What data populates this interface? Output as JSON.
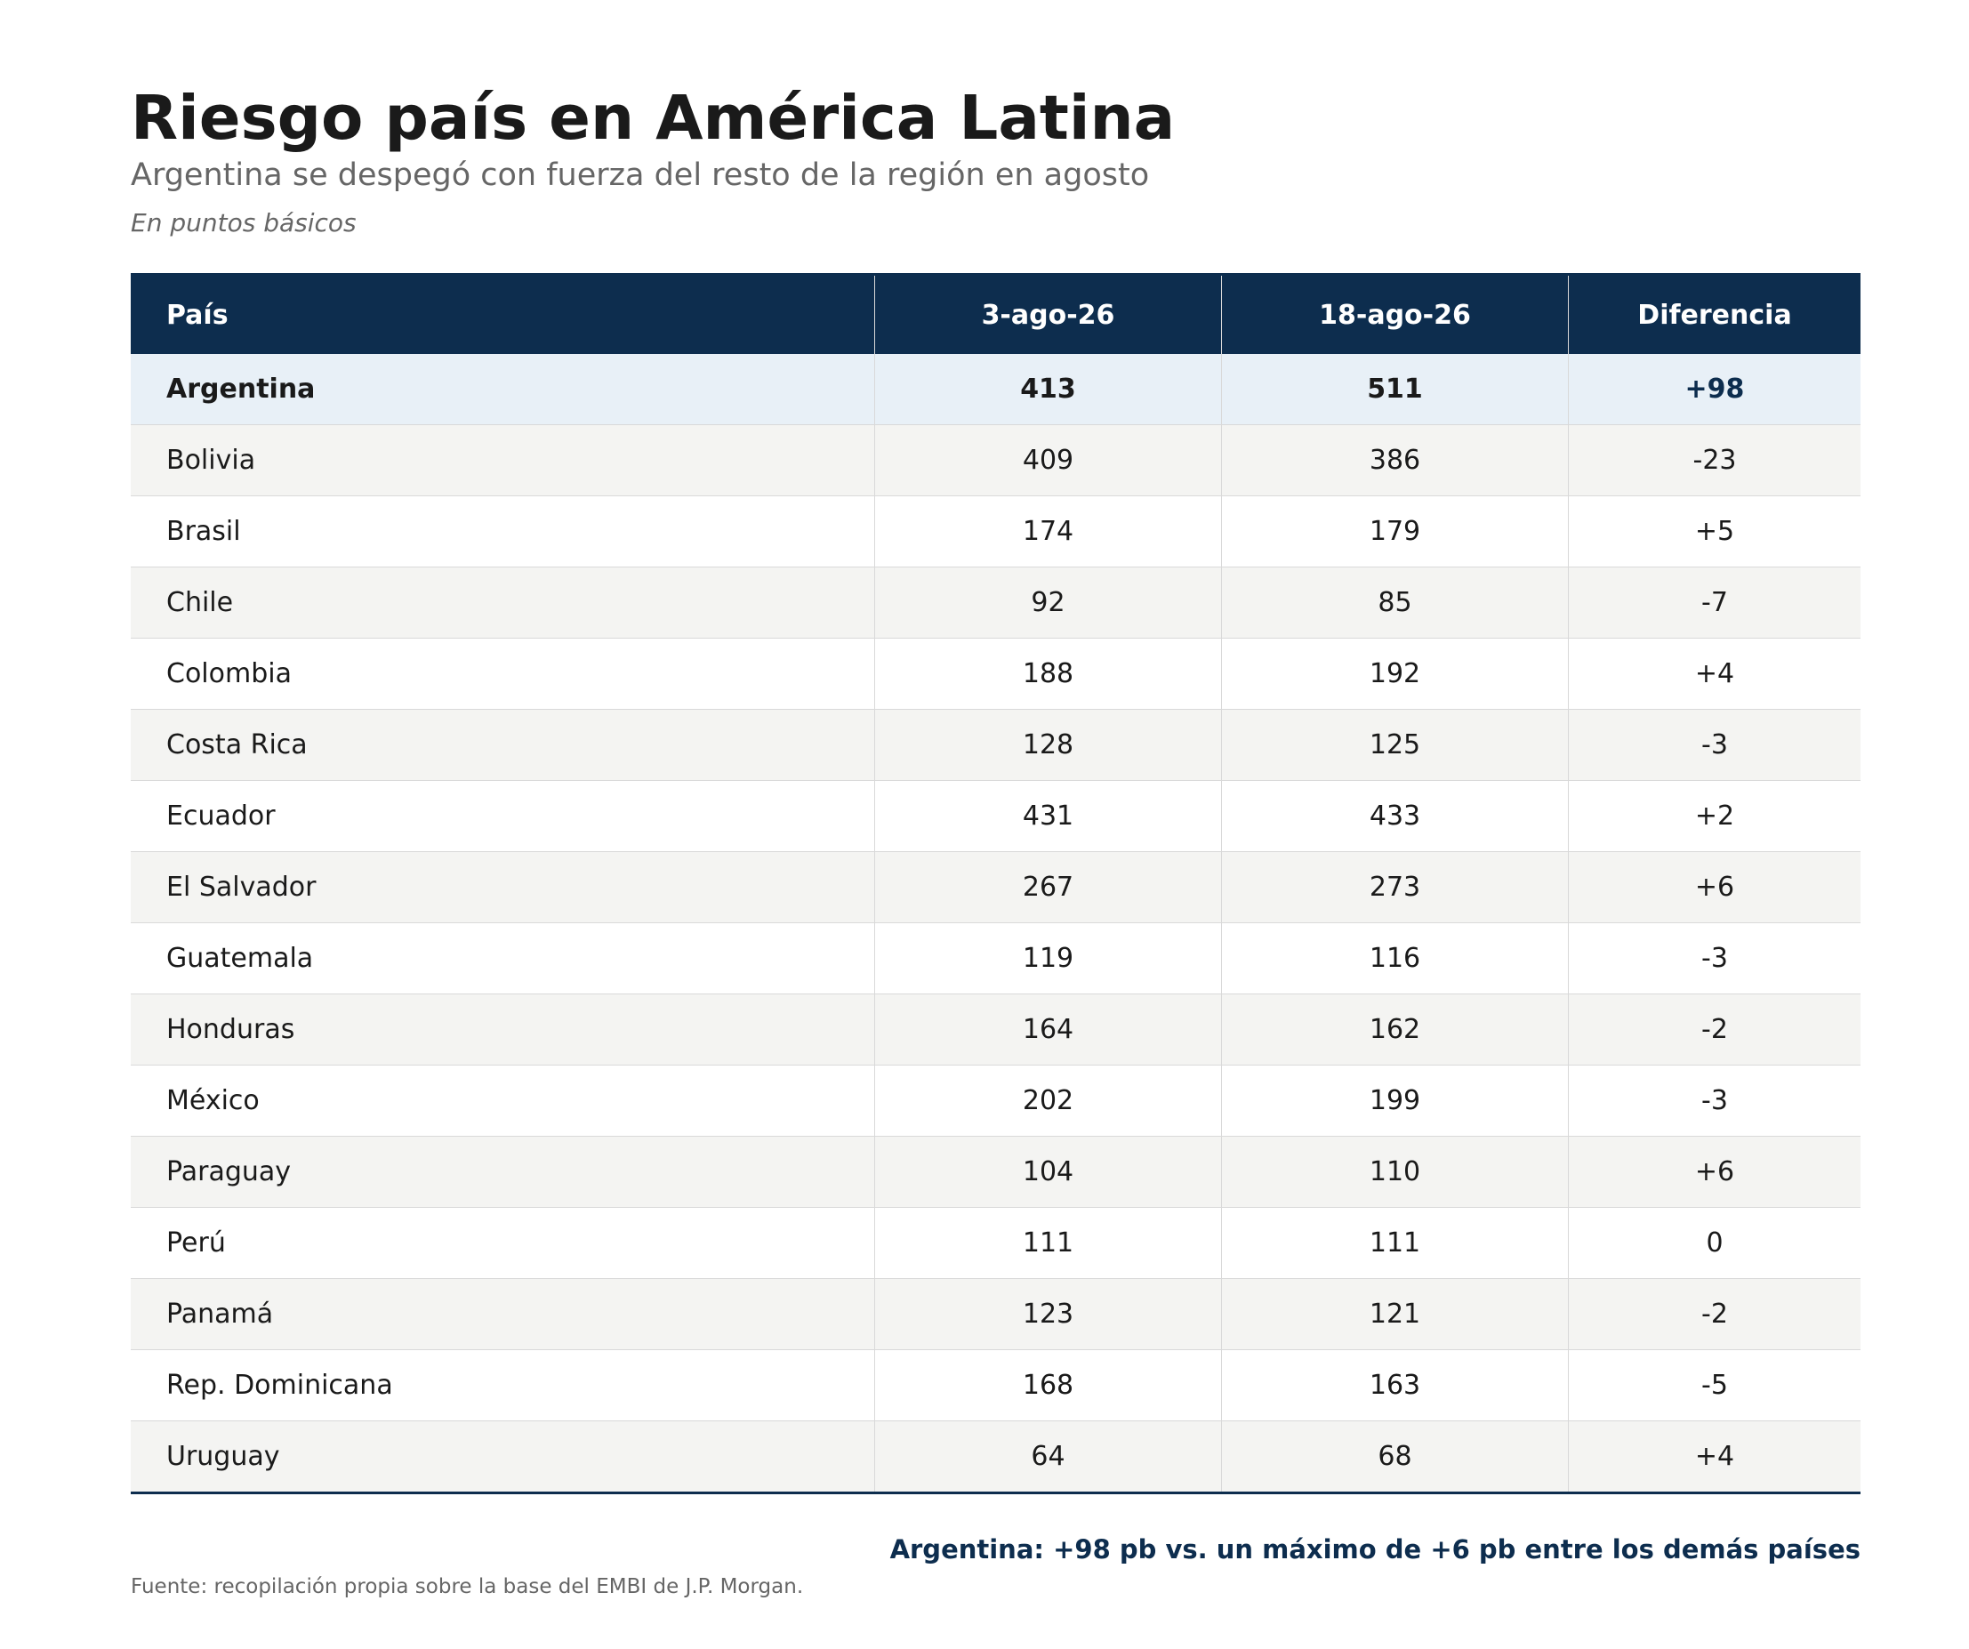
{
  "title": "Riesgo país en América Latina",
  "subtitle": "Argentina se despegó con fuerza del resto de la región en agosto",
  "units_note": "En puntos básicos",
  "chart_data": {
    "type": "table",
    "columns": [
      "País",
      "3-ago-26",
      "18-ago-26",
      "Diferencia"
    ],
    "highlight_row": "Argentina",
    "rows": [
      {
        "country": "Argentina",
        "aug3": 413,
        "aug18": 511,
        "diff": "+98"
      },
      {
        "country": "Bolivia",
        "aug3": 409,
        "aug18": 386,
        "diff": "-23"
      },
      {
        "country": "Brasil",
        "aug3": 174,
        "aug18": 179,
        "diff": "+5"
      },
      {
        "country": "Chile",
        "aug3": 92,
        "aug18": 85,
        "diff": "-7"
      },
      {
        "country": "Colombia",
        "aug3": 188,
        "aug18": 192,
        "diff": "+4"
      },
      {
        "country": "Costa Rica",
        "aug3": 128,
        "aug18": 125,
        "diff": "-3"
      },
      {
        "country": "Ecuador",
        "aug3": 431,
        "aug18": 433,
        "diff": "+2"
      },
      {
        "country": "El Salvador",
        "aug3": 267,
        "aug18": 273,
        "diff": "+6"
      },
      {
        "country": "Guatemala",
        "aug3": 119,
        "aug18": 116,
        "diff": "-3"
      },
      {
        "country": "Honduras",
        "aug3": 164,
        "aug18": 162,
        "diff": "-2"
      },
      {
        "country": "México",
        "aug3": 202,
        "aug18": 199,
        "diff": "-3"
      },
      {
        "country": "Paraguay",
        "aug3": 104,
        "aug18": 110,
        "diff": "+6"
      },
      {
        "country": "Perú",
        "aug3": 111,
        "aug18": 111,
        "diff": "0"
      },
      {
        "country": "Panamá",
        "aug3": 123,
        "aug18": 121,
        "diff": "-2"
      },
      {
        "country": "Rep. Dominicana",
        "aug3": 168,
        "aug18": 163,
        "diff": "-5"
      },
      {
        "country": "Uruguay",
        "aug3": 64,
        "aug18": 68,
        "diff": "+4"
      }
    ]
  },
  "callout": "Argentina: +98 pb vs. un máximo de +6 pb entre los demás países",
  "source": "Fuente: recopilación propia sobre la base del EMBI de J.P. Morgan.",
  "colors": {
    "header_bg": "#0d2d4e",
    "highlight_bg": "#e8f0f7",
    "stripe_bg": "#f4f4f2",
    "accent": "#0d2d4e"
  }
}
